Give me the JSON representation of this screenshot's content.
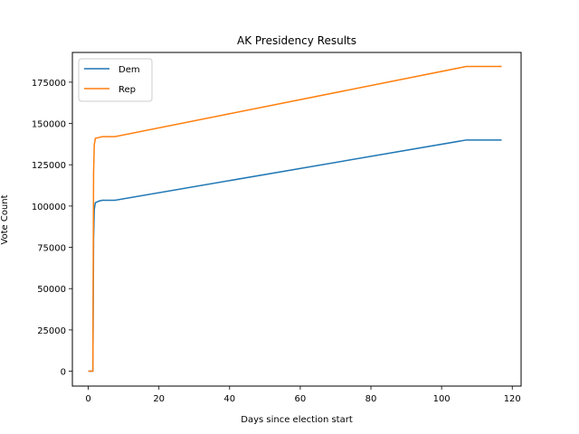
{
  "chart_data": {
    "type": "line",
    "title": "AK Presidency Results",
    "xlabel": "Days since election start",
    "ylabel": "Vote Count",
    "xlim": [
      -4.5,
      122.5
    ],
    "ylim": [
      -9000,
      193000
    ],
    "xticks": [
      0,
      20,
      40,
      60,
      80,
      100,
      120
    ],
    "yticks": [
      0,
      25000,
      50000,
      75000,
      100000,
      125000,
      150000,
      175000
    ],
    "grid": false,
    "legend_position": "top-left",
    "series": [
      {
        "name": "Dem",
        "color": "#1f77b4",
        "points": [
          [
            0,
            0
          ],
          [
            1,
            0
          ],
          [
            1.3,
            0
          ],
          [
            1.5,
            80000
          ],
          [
            1.7,
            98000
          ],
          [
            2,
            102000
          ],
          [
            3,
            103000
          ],
          [
            4,
            103500
          ],
          [
            7.5,
            103500
          ],
          [
            107,
            140000
          ],
          [
            117,
            140000
          ]
        ]
      },
      {
        "name": "Rep",
        "color": "#ff7f0e",
        "points": [
          [
            0,
            0
          ],
          [
            1,
            0
          ],
          [
            1.3,
            0
          ],
          [
            1.5,
            120000
          ],
          [
            1.7,
            137000
          ],
          [
            2,
            141000
          ],
          [
            3,
            141500
          ],
          [
            4,
            142000
          ],
          [
            7.5,
            142000
          ],
          [
            107,
            184500
          ],
          [
            117,
            184500
          ]
        ]
      }
    ]
  }
}
